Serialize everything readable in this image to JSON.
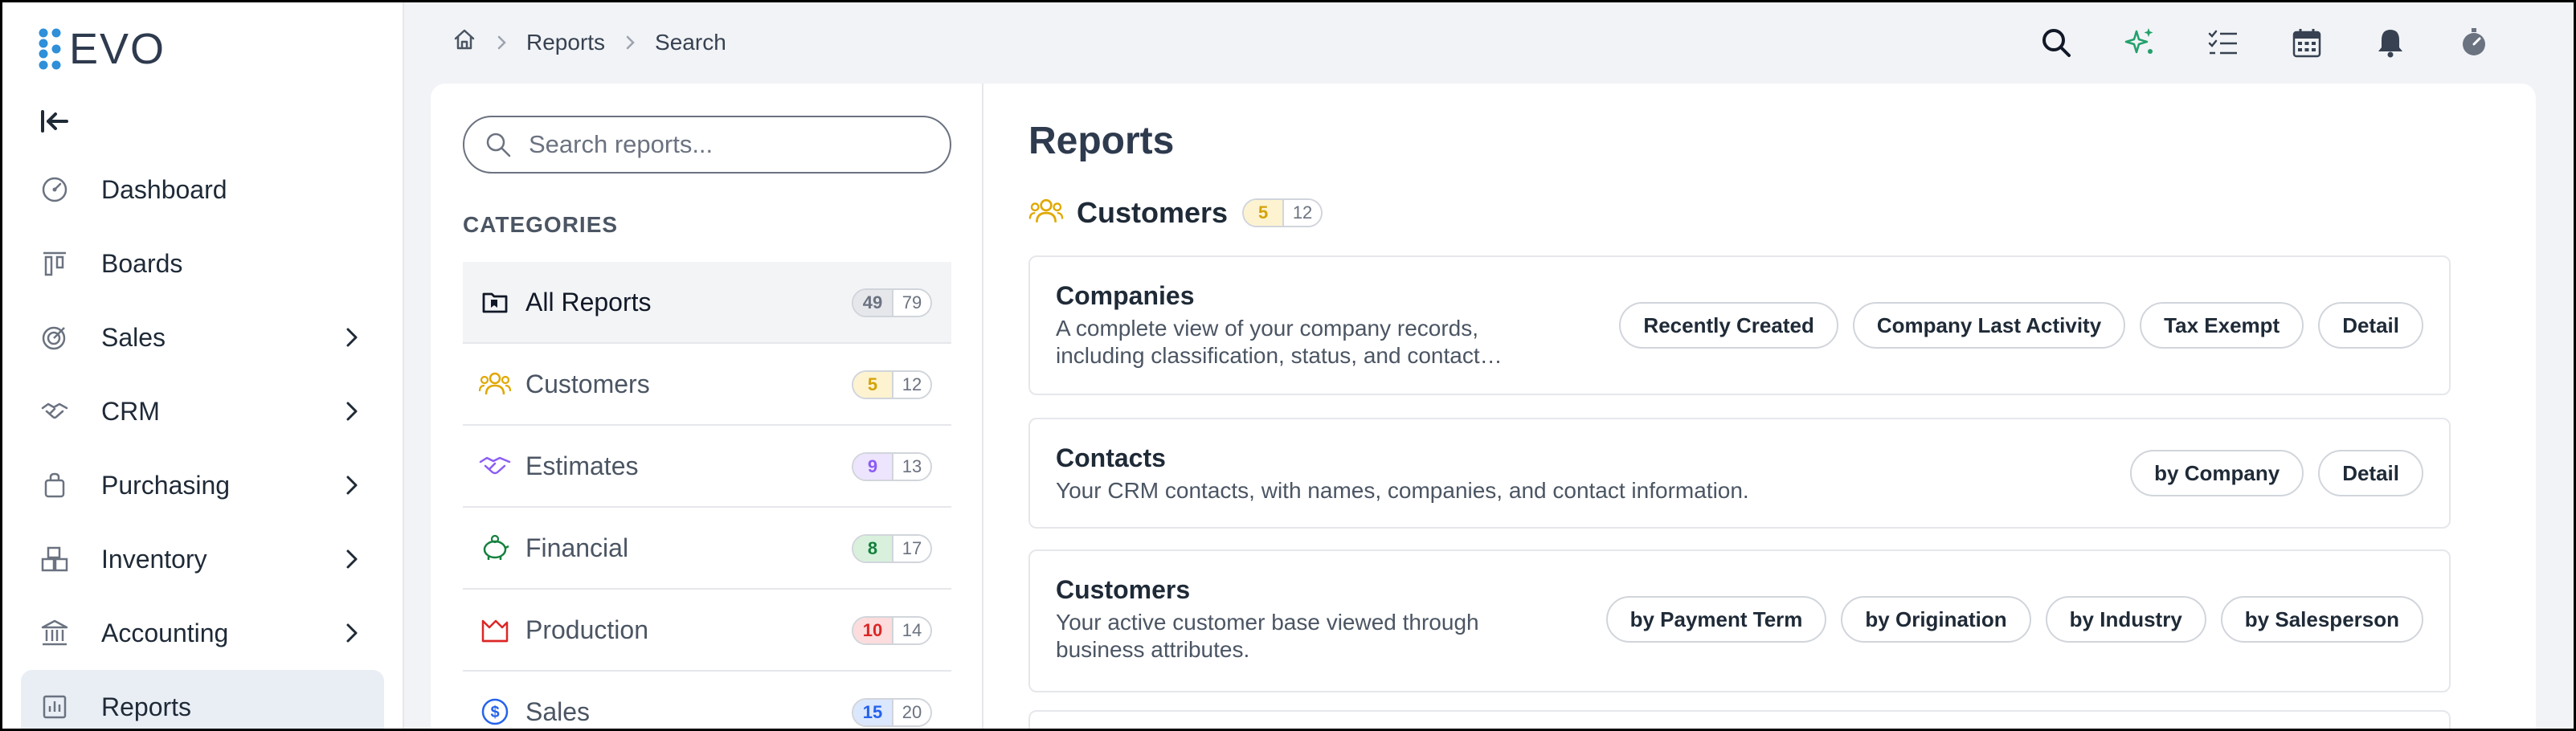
{
  "app": {
    "logo_text": "EVO"
  },
  "colors": {
    "brand": "#2f8fd8",
    "active_nav_bg": "#e9eef5",
    "text": "#1f2a37"
  },
  "sidebar": {
    "items": [
      {
        "label": "Dashboard",
        "icon": "dashboard-icon",
        "has_chevron": false
      },
      {
        "label": "Boards",
        "icon": "boards-icon",
        "has_chevron": false
      },
      {
        "label": "Sales",
        "icon": "sales-icon",
        "has_chevron": true
      },
      {
        "label": "CRM",
        "icon": "handshake-icon",
        "has_chevron": true
      },
      {
        "label": "Purchasing",
        "icon": "shopping-bag-icon",
        "has_chevron": true
      },
      {
        "label": "Inventory",
        "icon": "boxes-icon",
        "has_chevron": true
      },
      {
        "label": "Accounting",
        "icon": "bank-icon",
        "has_chevron": true
      },
      {
        "label": "Reports",
        "icon": "reports-icon",
        "has_chevron": false,
        "active": true
      }
    ]
  },
  "breadcrumb": {
    "items": [
      "Reports",
      "Search"
    ]
  },
  "topbar": {
    "icons": [
      "search-icon",
      "sparkles-icon",
      "checklist-icon",
      "calendar-icon",
      "bell-icon",
      "timer-icon"
    ]
  },
  "search": {
    "placeholder": "Search reports...",
    "value": ""
  },
  "categories": {
    "heading": "CATEGORIES",
    "items": [
      {
        "label": "All Reports",
        "icon": "folder-icon",
        "count_a": "49",
        "count_b": "79",
        "color": "#6b7280",
        "bg": "#e5e7eb",
        "active": true
      },
      {
        "label": "Customers",
        "icon": "users-icon",
        "count_a": "5",
        "count_b": "12",
        "color": "#d4a20a",
        "bg": "#fdf3d0"
      },
      {
        "label": "Estimates",
        "icon": "handshake-icon",
        "count_a": "9",
        "count_b": "13",
        "color": "#8b5cf6",
        "bg": "#ede4fd"
      },
      {
        "label": "Financial",
        "icon": "piggy-bank-icon",
        "count_a": "8",
        "count_b": "17",
        "color": "#15803d",
        "bg": "#d8f0dc"
      },
      {
        "label": "Production",
        "icon": "factory-icon",
        "count_a": "10",
        "count_b": "14",
        "color": "#dc2626",
        "bg": "#fcdcdc"
      },
      {
        "label": "Sales",
        "icon": "dollar-circle-icon",
        "count_a": "15",
        "count_b": "20",
        "color": "#2563eb",
        "bg": "#dbe7fd"
      }
    ]
  },
  "reports": {
    "title": "Reports",
    "section": {
      "title": "Customers",
      "count_a": "5",
      "count_b": "12"
    },
    "cards": [
      {
        "title": "Companies",
        "description": [
          "A complete view of your company records,",
          "including classification, status, and contact…"
        ],
        "actions": [
          "Recently Created",
          "Company Last Activity",
          "Tax Exempt",
          "Detail"
        ]
      },
      {
        "title": "Contacts",
        "description": [
          "Your CRM contacts, with names, companies, and contact information."
        ],
        "actions": [
          "by Company",
          "Detail"
        ]
      },
      {
        "title": "Customers",
        "description": [
          "Your active customer base viewed through",
          "business attributes."
        ],
        "actions": [
          "by Payment Term",
          "by Origination",
          "by Industry",
          "by Salesperson"
        ]
      }
    ]
  }
}
